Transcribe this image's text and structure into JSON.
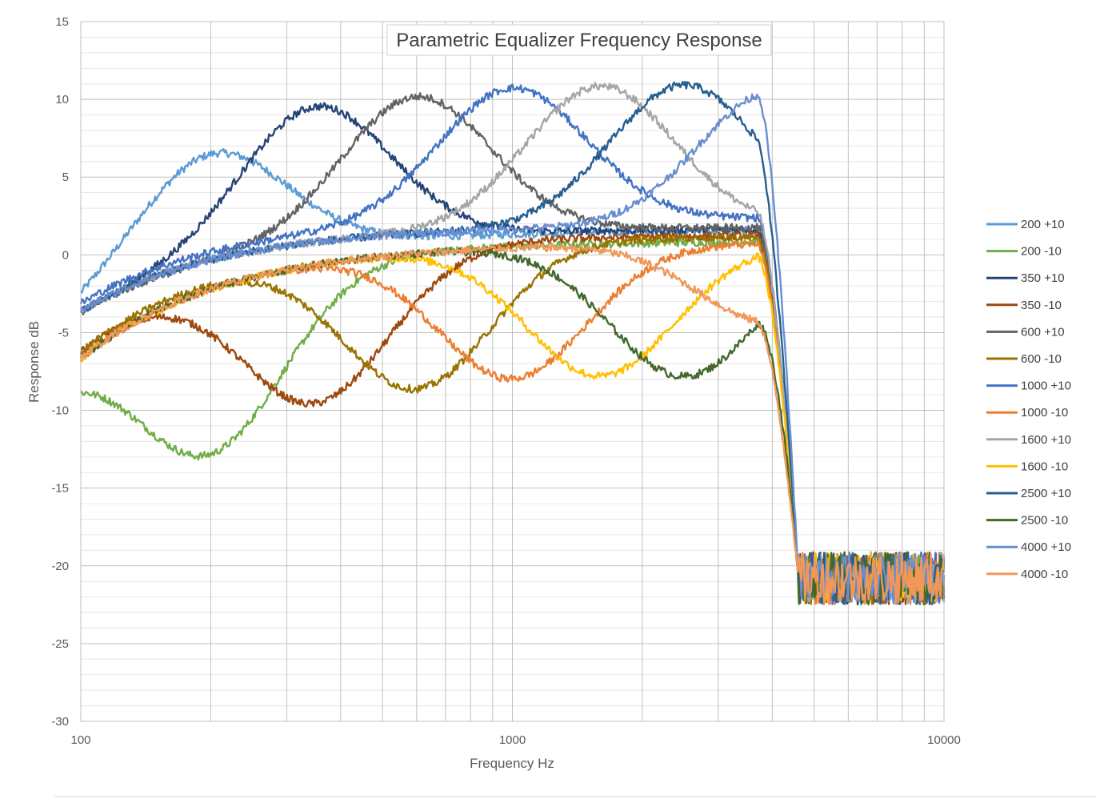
{
  "chart_data": {
    "type": "line",
    "title": "Parametric Equalizer Frequency Response",
    "xlabel": "Frequency Hz",
    "ylabel": "Response dB",
    "xscale": "log",
    "xlim": [
      100,
      10000
    ],
    "ylim": [
      -30,
      15
    ],
    "x_ticks": [
      "100",
      "1000",
      "10000"
    ],
    "y_ticks": [
      "15",
      "10",
      "5",
      "0",
      "-5",
      "-10",
      "-15",
      "-20",
      "-25",
      "-30"
    ],
    "grid": true,
    "legend": "right",
    "noise_floor": {
      "from_hz": 4600,
      "to_hz": 10000,
      "level_db": -20.8,
      "spread_db": 1.2
    },
    "series": [
      {
        "name": "200 +10",
        "color": "#5B9BD5",
        "center_hz": 200,
        "gain_db": 10,
        "peak_db": 8.7,
        "base_db": 1.6,
        "bw_oct": 1.25
      },
      {
        "name": "200 -10",
        "color": "#70AD47",
        "center_hz": 200,
        "gain_db": -10,
        "peak_db": -9.8,
        "base_db": 0.9,
        "bw_oct": 1.25
      },
      {
        "name": "350 +10",
        "color": "#264478",
        "center_hz": 350,
        "gain_db": 10,
        "peak_db": 10.6,
        "base_db": 1.7,
        "bw_oct": 1.25
      },
      {
        "name": "350 -10",
        "color": "#9E480E",
        "center_hz": 350,
        "gain_db": -10,
        "peak_db": -8.1,
        "base_db": 1.3,
        "bw_oct": 1.25
      },
      {
        "name": "600 +10",
        "color": "#636363",
        "center_hz": 600,
        "gain_db": 10,
        "peak_db": 10.7,
        "base_db": 1.8,
        "bw_oct": 1.25
      },
      {
        "name": "600 -10",
        "color": "#997300",
        "center_hz": 600,
        "gain_db": -10,
        "peak_db": -7.9,
        "base_db": 1.2,
        "bw_oct": 1.25
      },
      {
        "name": "1000 +10",
        "color": "#4472C4",
        "center_hz": 1000,
        "gain_db": 10,
        "peak_db": 11.0,
        "base_db": 2.4,
        "bw_oct": 1.25
      },
      {
        "name": "1000 -10",
        "color": "#ED7D31",
        "center_hz": 1000,
        "gain_db": -10,
        "peak_db": -7.6,
        "base_db": 0.8,
        "bw_oct": 1.25
      },
      {
        "name": "1600 +10",
        "color": "#A5A5A5",
        "center_hz": 1600,
        "gain_db": 10,
        "peak_db": 11.0,
        "base_db": 1.9,
        "bw_oct": 1.25
      },
      {
        "name": "1600 -10",
        "color": "#FFC000",
        "center_hz": 1600,
        "gain_db": -10,
        "peak_db": -7.6,
        "base_db": 0.8,
        "bw_oct": 1.25
      },
      {
        "name": "2500 +10",
        "color": "#255E91",
        "center_hz": 2500,
        "gain_db": 10,
        "peak_db": 11.0,
        "base_db": 1.9,
        "bw_oct": 1.25
      },
      {
        "name": "2500 -10",
        "color": "#43682B",
        "center_hz": 2500,
        "gain_db": -10,
        "peak_db": -7.7,
        "base_db": 0.8,
        "bw_oct": 1.25
      },
      {
        "name": "4000 +10",
        "color": "#698ED0",
        "center_hz": 4000,
        "gain_db": 10,
        "peak_db": 10.5,
        "base_db": 1.9,
        "bw_oct": 1.25
      },
      {
        "name": "4000 -10",
        "color": "#F1975A",
        "center_hz": 4000,
        "gain_db": -10,
        "peak_db": -4.3,
        "base_db": 0.8,
        "bw_oct": 1.25
      }
    ]
  }
}
